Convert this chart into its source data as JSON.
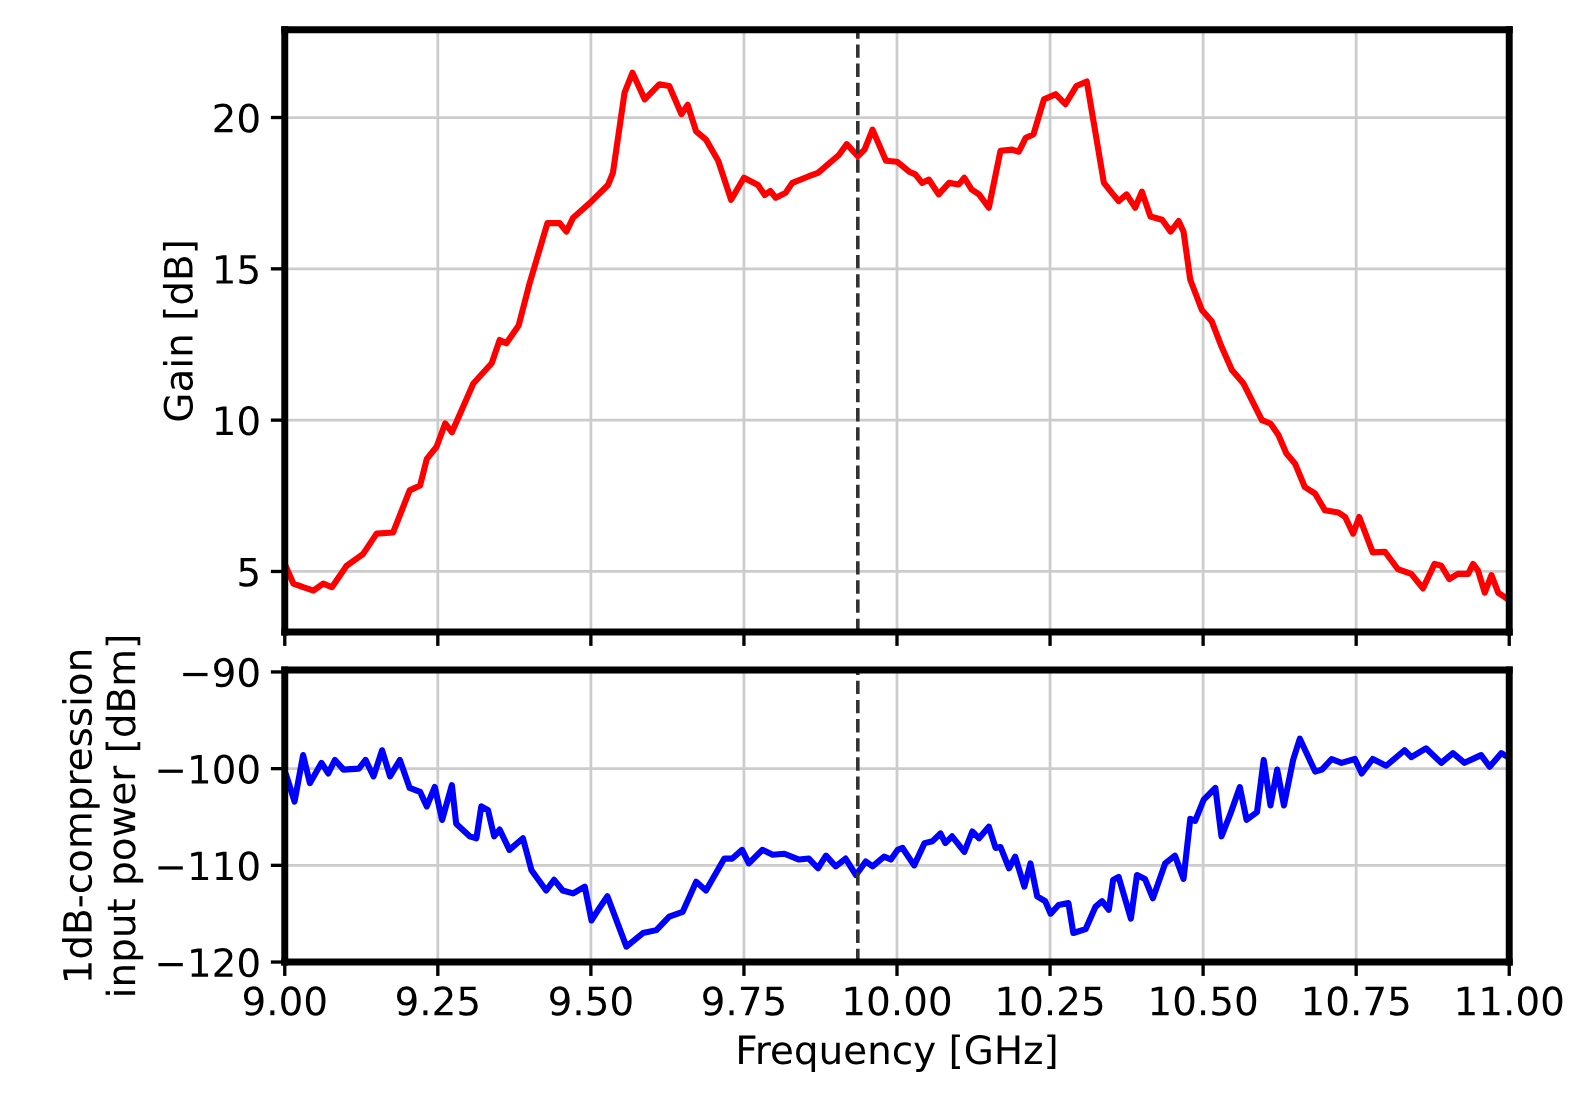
{
  "chart_data": [
    {
      "type": "line",
      "ylabel": "Gain [dB]",
      "xlim": [
        9.0,
        11.0
      ],
      "xticks": [
        9.0,
        9.25,
        9.5,
        9.75,
        10.0,
        10.25,
        10.5,
        10.75,
        11.0
      ],
      "ylim": [
        3.0,
        22.9
      ],
      "yticks": [
        5,
        10,
        15,
        20
      ],
      "grid": true,
      "tick_labels": "y",
      "ref_lines": [
        {
          "axis": "x",
          "value": 9.936,
          "color": "#333333",
          "line_style": "dashed"
        }
      ],
      "series": [
        {
          "color": "#ff0000",
          "x": [
            9.0,
            9.014,
            9.03,
            9.047,
            9.063,
            9.077,
            9.101,
            9.128,
            9.15,
            9.177,
            9.204,
            9.221,
            9.232,
            9.248,
            9.262,
            9.273,
            9.308,
            9.338,
            9.351,
            9.362,
            9.382,
            9.4,
            9.429,
            9.449,
            9.46,
            9.471,
            9.498,
            9.528,
            9.536,
            9.555,
            9.568,
            9.588,
            9.612,
            9.628,
            9.648,
            9.658,
            9.672,
            9.688,
            9.708,
            9.729,
            9.75,
            9.773,
            9.784,
            9.793,
            9.802,
            9.818,
            9.829,
            9.856,
            9.871,
            9.905,
            9.918,
            9.936,
            9.947,
            9.96,
            9.982,
            10.0,
            10.02,
            10.03,
            10.041,
            10.052,
            10.068,
            10.085,
            10.101,
            10.11,
            10.122,
            10.134,
            10.15,
            10.169,
            10.188,
            10.199,
            10.21,
            10.223,
            10.24,
            10.259,
            10.275,
            10.293,
            10.31,
            10.338,
            10.353,
            10.362,
            10.375,
            10.389,
            10.4,
            10.414,
            10.433,
            10.447,
            10.46,
            10.468,
            10.479,
            10.498,
            10.514,
            10.53,
            10.547,
            10.566,
            10.596,
            10.61,
            10.623,
            10.636,
            10.65,
            10.666,
            10.683,
            10.699,
            10.721,
            10.732,
            10.745,
            10.755,
            10.777,
            10.797,
            10.818,
            10.84,
            10.859,
            10.878,
            10.889,
            10.902,
            10.916,
            10.933,
            10.941,
            10.949,
            10.96,
            10.971,
            10.982,
            10.998
          ],
          "values": [
            5.25,
            4.6,
            4.48,
            4.37,
            4.6,
            4.48,
            5.19,
            5.58,
            6.25,
            6.29,
            7.68,
            7.84,
            8.72,
            9.12,
            9.89,
            9.6,
            11.21,
            11.88,
            12.65,
            12.54,
            13.13,
            14.53,
            16.51,
            16.51,
            16.23,
            16.69,
            17.17,
            17.77,
            18.17,
            20.82,
            21.48,
            20.6,
            21.1,
            21.04,
            20.11,
            20.42,
            19.54,
            19.27,
            18.57,
            17.28,
            18.01,
            17.77,
            17.44,
            17.57,
            17.35,
            17.51,
            17.84,
            18.06,
            18.17,
            18.76,
            19.12,
            18.72,
            18.94,
            19.6,
            18.57,
            18.54,
            18.21,
            18.12,
            17.84,
            17.95,
            17.46,
            17.84,
            17.79,
            18.01,
            17.62,
            17.46,
            17.02,
            18.9,
            18.94,
            18.87,
            19.32,
            19.45,
            20.6,
            20.77,
            20.44,
            21.04,
            21.19,
            17.84,
            17.46,
            17.24,
            17.46,
            17.02,
            17.55,
            16.73,
            16.62,
            16.23,
            16.58,
            16.23,
            14.64,
            13.64,
            13.27,
            12.43,
            11.66,
            11.21,
            10.0,
            9.89,
            9.51,
            8.9,
            8.57,
            7.79,
            7.57,
            7.02,
            6.95,
            6.8,
            6.25,
            6.8,
            5.63,
            5.65,
            5.08,
            4.92,
            4.44,
            5.25,
            5.19,
            4.75,
            4.92,
            4.92,
            5.25,
            5.03,
            4.3,
            4.88,
            4.3,
            4.08
          ]
        }
      ]
    },
    {
      "type": "line",
      "xlabel": "Frequency [GHz]",
      "ylabel": "1dB-compression\ninput power [dBm]",
      "xlim": [
        9.0,
        11.0
      ],
      "xticks": [
        {
          "value": 9.0,
          "label": "9.00"
        },
        9.25,
        {
          "value": 9.5,
          "label": "9.50"
        },
        9.75,
        {
          "value": 10.0,
          "label": "10.00"
        },
        10.25,
        {
          "value": 10.5,
          "label": "10.50"
        },
        10.75,
        {
          "value": 11.0,
          "label": "11.00"
        }
      ],
      "ylim": [
        -120,
        -89.8
      ],
      "yticks": [
        {
          "value": -120,
          "label": "−120"
        },
        {
          "value": -110,
          "label": "−110"
        },
        {
          "value": -100,
          "label": "−100"
        },
        {
          "value": -90,
          "label": "−90"
        }
      ],
      "grid": true,
      "ref_lines": [
        {
          "axis": "x",
          "value": 9.936,
          "color": "#333333",
          "line_style": "dashed"
        }
      ],
      "series": [
        {
          "color": "#0000ff",
          "x": [
            9.003,
            9.016,
            9.03,
            9.041,
            9.06,
            9.071,
            9.082,
            9.096,
            9.121,
            9.132,
            9.145,
            9.159,
            9.172,
            9.188,
            9.204,
            9.221,
            9.232,
            9.245,
            9.257,
            9.273,
            9.28,
            9.302,
            9.313,
            9.321,
            9.332,
            9.342,
            9.351,
            9.367,
            9.389,
            9.403,
            9.427,
            9.44,
            9.454,
            9.471,
            9.49,
            9.501,
            9.512,
            9.527,
            9.558,
            9.585,
            9.607,
            9.628,
            9.65,
            9.672,
            9.688,
            9.718,
            9.731,
            9.747,
            9.758,
            9.78,
            9.797,
            9.816,
            9.84,
            9.856,
            9.871,
            9.884,
            9.9,
            9.916,
            9.933,
            9.949,
            9.96,
            9.979,
            9.99,
            10.001,
            10.009,
            10.028,
            10.045,
            10.058,
            10.071,
            10.079,
            10.09,
            10.11,
            10.123,
            10.134,
            10.15,
            10.161,
            10.169,
            10.183,
            10.193,
            10.208,
            10.218,
            10.229,
            10.242,
            10.251,
            10.264,
            10.28,
            10.288,
            10.308,
            10.324,
            10.335,
            10.346,
            10.353,
            10.362,
            10.382,
            10.392,
            10.405,
            10.418,
            10.438,
            10.454,
            10.468,
            10.479,
            10.487,
            10.501,
            10.52,
            10.53,
            10.545,
            10.56,
            10.571,
            10.588,
            10.599,
            10.61,
            10.621,
            10.632,
            10.647,
            10.658,
            10.683,
            10.694,
            10.71,
            10.726,
            10.748,
            10.759,
            10.777,
            10.799,
            10.829,
            10.84,
            10.864,
            10.889,
            10.908,
            10.927,
            10.954,
            10.968,
            10.987,
            10.998
          ],
          "values": [
            -100.8,
            -103.4,
            -98.6,
            -101.5,
            -99.4,
            -100.5,
            -99.1,
            -100.1,
            -100.0,
            -99.1,
            -100.8,
            -98.1,
            -100.8,
            -99.1,
            -102.0,
            -102.4,
            -103.9,
            -101.9,
            -105.3,
            -101.7,
            -105.7,
            -107.0,
            -107.2,
            -103.9,
            -104.3,
            -107.0,
            -106.3,
            -108.4,
            -107.2,
            -110.5,
            -112.6,
            -111.5,
            -112.6,
            -112.9,
            -112.2,
            -115.7,
            -114.6,
            -113.2,
            -118.4,
            -117.0,
            -116.7,
            -115.3,
            -114.8,
            -111.7,
            -112.6,
            -109.3,
            -109.3,
            -108.4,
            -109.8,
            -108.4,
            -108.9,
            -108.8,
            -109.4,
            -109.3,
            -110.3,
            -109.0,
            -110.1,
            -109.3,
            -111.0,
            -109.6,
            -110.1,
            -109.1,
            -109.4,
            -108.4,
            -108.2,
            -110.0,
            -107.7,
            -107.5,
            -106.7,
            -107.7,
            -107.0,
            -108.6,
            -106.5,
            -107.2,
            -106.0,
            -108.2,
            -108.1,
            -110.3,
            -109.1,
            -112.2,
            -109.8,
            -113.2,
            -113.7,
            -115.0,
            -114.1,
            -113.9,
            -117.0,
            -116.6,
            -114.3,
            -113.7,
            -114.6,
            -111.5,
            -111.2,
            -115.5,
            -111.0,
            -111.4,
            -113.4,
            -109.8,
            -109.0,
            -111.4,
            -105.2,
            -105.4,
            -103.2,
            -102.0,
            -107.0,
            -104.6,
            -101.9,
            -105.3,
            -104.5,
            -99.1,
            -103.8,
            -100.1,
            -103.8,
            -99.1,
            -96.9,
            -100.3,
            -100.1,
            -99.0,
            -99.4,
            -99.0,
            -100.5,
            -99.0,
            -99.7,
            -98.1,
            -98.8,
            -97.9,
            -99.4,
            -98.4,
            -99.4,
            -98.6,
            -99.8,
            -98.4,
            -98.8
          ]
        }
      ]
    }
  ]
}
